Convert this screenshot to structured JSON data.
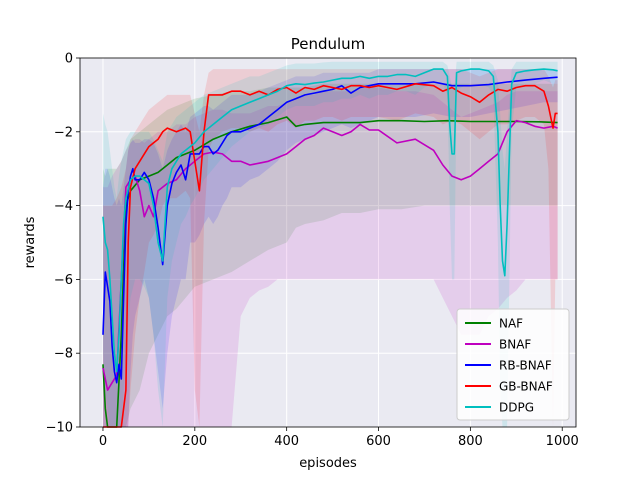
{
  "chart_data": {
    "type": "line",
    "title": "Pendulum",
    "xlabel": "episodes",
    "ylabel": "rewards",
    "xlim": [
      -50,
      1030
    ],
    "ylim": [
      -10,
      0
    ],
    "xticks": [
      0,
      200,
      400,
      600,
      800,
      1000
    ],
    "xtick_labels": [
      "0",
      "200",
      "400",
      "600",
      "800",
      "1000"
    ],
    "yticks": [
      -10,
      -8,
      -6,
      -4,
      -2,
      0
    ],
    "ytick_labels": [
      "−10",
      "−8",
      "−6",
      "−4",
      "−2",
      "0"
    ],
    "grid": true,
    "legend_position": "lower-right",
    "series": [
      {
        "name": "NAF",
        "color": "#008000",
        "x": [
          0,
          5,
          10,
          20,
          30,
          40,
          50,
          60,
          80,
          100,
          120,
          140,
          160,
          180,
          200,
          240,
          280,
          320,
          360,
          400,
          420,
          440,
          480,
          520,
          560,
          600,
          650,
          700,
          750,
          800,
          850,
          900,
          950,
          990
        ],
        "y": [
          -8.3,
          -9.5,
          -10.0,
          -10.0,
          -10.0,
          -7.5,
          -4.0,
          -3.6,
          -3.3,
          -3.2,
          -3.1,
          -2.9,
          -2.7,
          -2.6,
          -2.5,
          -2.2,
          -2.0,
          -1.85,
          -1.75,
          -1.6,
          -1.85,
          -1.8,
          -1.75,
          -1.75,
          -1.75,
          -1.7,
          -1.7,
          -1.72,
          -1.7,
          -1.72,
          -1.72,
          -1.72,
          -1.73,
          -1.75
        ],
        "band_upper": [
          -3.0,
          -3.2,
          -3.0,
          -3.0,
          -3.0,
          -2.8,
          -2.5,
          -2.2,
          -2.0,
          -1.8,
          -1.6,
          -1.4,
          -1.3,
          -1.2,
          -1.1,
          -1.0,
          -0.9,
          -0.9,
          -0.8,
          -0.8,
          -0.8,
          -0.8,
          -0.7,
          -0.7,
          -0.7,
          -0.7,
          -0.7,
          -0.7,
          -0.7,
          -0.7,
          -0.7,
          -0.7,
          -0.7,
          -0.7
        ],
        "band_lower": [
          -10,
          -10,
          -10,
          -10,
          -10,
          -10,
          -10,
          -9.5,
          -9,
          -8.0,
          -7.5,
          -7.0,
          -6.8,
          -6.5,
          -6.2,
          -6.0,
          -5.8,
          -5.5,
          -5.2,
          -5.0,
          -4.6,
          -4.5,
          -4.4,
          -4.2,
          -4.2,
          -4.1,
          -4.1,
          -4.0,
          -4.0,
          -4.0,
          -4.0,
          -4.0,
          -4.0,
          -4.0
        ]
      },
      {
        "name": "BNAF",
        "color": "#bf00bf",
        "x": [
          0,
          10,
          20,
          30,
          40,
          50,
          60,
          70,
          80,
          90,
          100,
          110,
          120,
          140,
          160,
          180,
          200,
          220,
          240,
          260,
          280,
          300,
          320,
          340,
          360,
          380,
          400,
          420,
          440,
          460,
          480,
          500,
          520,
          540,
          560,
          580,
          600,
          640,
          680,
          720,
          740,
          760,
          780,
          800,
          820,
          840,
          860,
          880,
          900,
          920,
          940,
          960,
          980,
          990
        ],
        "y": [
          -8.4,
          -9.0,
          -8.8,
          -8.6,
          -6.0,
          -3.5,
          -3.3,
          -3.2,
          -3.6,
          -4.3,
          -4.0,
          -4.3,
          -3.6,
          -3.4,
          -3.3,
          -3.0,
          -2.8,
          -2.6,
          -2.55,
          -2.6,
          -2.8,
          -2.8,
          -2.9,
          -2.85,
          -2.8,
          -2.7,
          -2.6,
          -2.4,
          -2.2,
          -2.1,
          -1.9,
          -2.0,
          -2.1,
          -2.0,
          -1.8,
          -1.95,
          -1.95,
          -2.3,
          -2.2,
          -2.5,
          -2.9,
          -3.2,
          -3.3,
          -3.2,
          -3.0,
          -2.8,
          -2.6,
          -2.0,
          -1.7,
          -1.75,
          -1.85,
          -1.9,
          -1.85,
          -1.9
        ],
        "band_upper": [
          -3.5,
          -3.5,
          -3.2,
          -3.0,
          -2.8,
          -2.5,
          -2.3,
          -2.2,
          -2.2,
          -2.3,
          -2.2,
          -2.1,
          -2.0,
          -2.0,
          -1.8,
          -1.8,
          -1.6,
          -1.5,
          -1.4,
          -1.4,
          -1.5,
          -1.5,
          -1.5,
          -1.4,
          -1.3,
          -1.3,
          -1.2,
          -1.1,
          -1.0,
          -1.0,
          -0.9,
          -0.9,
          -0.9,
          -0.9,
          -0.8,
          -0.8,
          -0.8,
          -0.9,
          -0.9,
          -1.0,
          -1.2,
          -1.4,
          -1.6,
          -1.5,
          -1.4,
          -1.3,
          -1.2,
          -1.0,
          -0.9,
          -0.9,
          -0.9,
          -0.9,
          -0.9,
          -0.9
        ],
        "band_lower": [
          -10,
          -10,
          -10,
          -10,
          -10,
          -10,
          -10,
          -10,
          -10,
          -10,
          -10,
          -10,
          -10,
          -10,
          -10,
          -10,
          -10,
          -10,
          -10,
          -10,
          -10,
          -7.0,
          -6.5,
          -6.3,
          -6.2,
          -6.0,
          -6.0,
          -6.0,
          -6.0,
          -6.0,
          -6.0,
          -6.0,
          -6.0,
          -6.0,
          -6.0,
          -6.0,
          -6.0,
          -6.0,
          -6.0,
          -6.0,
          -6.5,
          -7.0,
          -7.5,
          -7.5,
          -7.5,
          -7.0,
          -6.8,
          -6.5,
          -6.3,
          -6.0,
          -6.0,
          -6.0,
          -6.0,
          -6.0
        ]
      },
      {
        "name": "RB-BNAF",
        "color": "#0000ff",
        "x": [
          0,
          5,
          10,
          15,
          20,
          25,
          30,
          35,
          40,
          45,
          50,
          55,
          60,
          65,
          70,
          80,
          90,
          100,
          110,
          120,
          130,
          140,
          150,
          160,
          170,
          180,
          190,
          200,
          210,
          220,
          230,
          240,
          250,
          260,
          270,
          280,
          300,
          320,
          340,
          360,
          380,
          400,
          420,
          440,
          460,
          480,
          500,
          520,
          540,
          560,
          580,
          600,
          640,
          680,
          720,
          760,
          800,
          840,
          880,
          920,
          960,
          990
        ],
        "y": [
          -7.5,
          -5.8,
          -6.2,
          -6.6,
          -7.8,
          -8.5,
          -8.8,
          -8.3,
          -8.7,
          -6.5,
          -4.5,
          -3.6,
          -3.2,
          -3.0,
          -3.3,
          -3.3,
          -3.1,
          -3.3,
          -3.8,
          -4.6,
          -5.6,
          -4.0,
          -3.4,
          -3.1,
          -2.9,
          -3.3,
          -2.6,
          -2.6,
          -2.6,
          -2.4,
          -2.4,
          -2.6,
          -2.5,
          -2.3,
          -2.1,
          -2.0,
          -2.0,
          -1.9,
          -1.8,
          -1.6,
          -1.4,
          -1.2,
          -1.1,
          -1.0,
          -0.95,
          -0.9,
          -0.85,
          -0.75,
          -0.95,
          -0.8,
          -0.75,
          -0.7,
          -0.7,
          -0.7,
          -0.65,
          -0.75,
          -0.75,
          -0.72,
          -0.65,
          -0.6,
          -0.55,
          -0.52
        ],
        "band_upper": [
          -3.5,
          -3.0,
          -3.0,
          -3.2,
          -3.5,
          -3.8,
          -4.0,
          -3.8,
          -4.0,
          -3.5,
          -3.0,
          -2.5,
          -2.3,
          -2.2,
          -2.3,
          -2.3,
          -2.2,
          -2.2,
          -2.3,
          -2.6,
          -3.0,
          -2.5,
          -2.2,
          -2.0,
          -1.8,
          -2.0,
          -1.6,
          -1.5,
          -1.4,
          -1.3,
          -1.3,
          -1.4,
          -1.3,
          -1.2,
          -1.1,
          -1.0,
          -1.0,
          -1.0,
          -0.9,
          -0.8,
          -0.7,
          -0.6,
          -0.5,
          -0.5,
          -0.5,
          -0.4,
          -0.4,
          -0.4,
          -0.4,
          -0.4,
          -0.4,
          -0.3,
          -0.3,
          -0.3,
          -0.3,
          -0.3,
          -0.3,
          -0.3,
          -0.3,
          -0.3,
          -0.3,
          -0.3
        ],
        "band_lower": [
          -10,
          -10,
          -10,
          -10,
          -10,
          -10,
          -10,
          -10,
          -10,
          -10,
          -10,
          -10,
          -8.5,
          -7.5,
          -7.0,
          -6.5,
          -6.0,
          -6.5,
          -7.5,
          -8.5,
          -9.5,
          -8.0,
          -7.0,
          -6.5,
          -6.0,
          -6.0,
          -5.0,
          -5.0,
          -4.8,
          -4.5,
          -4.3,
          -4.5,
          -4.3,
          -4.0,
          -3.8,
          -3.5,
          -3.5,
          -3.3,
          -3.2,
          -3.0,
          -2.8,
          -2.5,
          -2.3,
          -2.2,
          -2.1,
          -2.0,
          -1.9,
          -1.8,
          -1.9,
          -1.8,
          -1.7,
          -1.6,
          -1.6,
          -1.6,
          -1.5,
          -1.6,
          -1.6,
          -1.5,
          -1.4,
          -1.3,
          -1.2,
          -1.2
        ]
      },
      {
        "name": "GB-BNAF",
        "color": "#ff0000",
        "x": [
          0,
          10,
          20,
          30,
          40,
          50,
          55,
          60,
          70,
          80,
          90,
          100,
          110,
          120,
          130,
          140,
          160,
          180,
          190,
          200,
          210,
          220,
          230,
          240,
          260,
          280,
          300,
          320,
          340,
          360,
          380,
          400,
          420,
          440,
          460,
          480,
          500,
          520,
          540,
          560,
          580,
          600,
          640,
          680,
          720,
          740,
          760,
          780,
          800,
          820,
          840,
          860,
          880,
          900,
          920,
          940,
          960,
          970,
          980,
          985,
          990
        ],
        "y": [
          -10,
          -10,
          -10,
          -10,
          -10,
          -9.0,
          -5.0,
          -3.5,
          -3.0,
          -2.8,
          -2.6,
          -2.4,
          -2.3,
          -2.2,
          -2.0,
          -1.9,
          -2.0,
          -1.9,
          -2.0,
          -2.8,
          -3.6,
          -2.0,
          -1.0,
          -1.0,
          -1.0,
          -0.9,
          -0.9,
          -1.0,
          -0.9,
          -1.0,
          -0.85,
          -0.8,
          -0.95,
          -0.8,
          -0.85,
          -0.75,
          -0.8,
          -0.85,
          -0.75,
          -0.75,
          -0.8,
          -0.75,
          -0.85,
          -0.7,
          -0.75,
          -0.9,
          -0.8,
          -0.95,
          -1.05,
          -1.2,
          -1.0,
          -0.85,
          -0.9,
          -0.8,
          -0.75,
          -0.75,
          -0.9,
          -1.3,
          -1.9,
          -1.5,
          -1.5
        ],
        "band_upper": [
          -4.0,
          -4.0,
          -4.0,
          -3.8,
          -3.5,
          -3.0,
          -2.5,
          -2.2,
          -2.0,
          -1.8,
          -1.6,
          -1.4,
          -1.3,
          -1.2,
          -1.1,
          -1.0,
          -1.0,
          -1.0,
          -1.0,
          -1.5,
          -2.0,
          -1.0,
          -0.4,
          -0.3,
          -0.3,
          -0.3,
          -0.3,
          -0.3,
          -0.3,
          -0.3,
          -0.3,
          -0.3,
          -0.3,
          -0.3,
          -0.3,
          -0.3,
          -0.3,
          -0.3,
          -0.3,
          -0.3,
          -0.3,
          -0.3,
          -0.3,
          -0.3,
          -0.3,
          -0.3,
          -0.3,
          -0.3,
          -0.4,
          -0.5,
          -0.4,
          -0.3,
          -0.3,
          -0.3,
          -0.3,
          -0.3,
          -0.3,
          -0.5,
          -0.8,
          -0.6,
          -0.6
        ],
        "band_lower": [
          -10,
          -10,
          -10,
          -10,
          -10,
          -10,
          -10,
          -9.0,
          -7.5,
          -6.5,
          -5.8,
          -5.0,
          -4.8,
          -4.5,
          -4.0,
          -3.8,
          -3.8,
          -3.6,
          -3.8,
          -9.0,
          -10,
          -4.5,
          -2.5,
          -2.2,
          -2.0,
          -1.9,
          -1.9,
          -2.0,
          -1.9,
          -2.0,
          -1.8,
          -1.7,
          -1.9,
          -1.7,
          -1.7,
          -1.6,
          -1.6,
          -1.7,
          -1.6,
          -1.6,
          -1.6,
          -1.6,
          -1.7,
          -1.5,
          -1.6,
          -1.8,
          -1.7,
          -1.8,
          -2.0,
          -2.2,
          -2.0,
          -1.8,
          -1.8,
          -1.7,
          -1.6,
          -1.6,
          -1.8,
          -3.0,
          -10,
          -6.0,
          -6.0
        ]
      },
      {
        "name": "DDPG",
        "color": "#00bfbf",
        "x": [
          0,
          5,
          10,
          15,
          20,
          25,
          30,
          35,
          40,
          45,
          50,
          60,
          70,
          80,
          90,
          100,
          110,
          120,
          130,
          140,
          150,
          160,
          170,
          180,
          190,
          200,
          220,
          240,
          260,
          280,
          300,
          320,
          340,
          360,
          380,
          400,
          420,
          440,
          460,
          480,
          500,
          520,
          540,
          560,
          580,
          600,
          620,
          640,
          660,
          680,
          700,
          720,
          740,
          750,
          755,
          760,
          765,
          770,
          780,
          800,
          820,
          840,
          850,
          860,
          865,
          870,
          875,
          880,
          890,
          900,
          920,
          940,
          960,
          980,
          990
        ],
        "y": [
          -4.3,
          -5.0,
          -5.2,
          -6.0,
          -7.0,
          -8.0,
          -8.5,
          -7.5,
          -6.0,
          -4.5,
          -3.8,
          -3.3,
          -3.2,
          -3.2,
          -3.3,
          -3.4,
          -4.0,
          -5.0,
          -5.5,
          -3.5,
          -3.0,
          -2.8,
          -2.6,
          -2.5,
          -2.4,
          -2.3,
          -2.0,
          -1.8,
          -1.6,
          -1.4,
          -1.3,
          -1.2,
          -1.1,
          -1.0,
          -0.9,
          -0.75,
          -0.7,
          -0.72,
          -0.68,
          -0.65,
          -0.6,
          -0.55,
          -0.55,
          -0.5,
          -0.55,
          -0.5,
          -0.5,
          -0.45,
          -0.45,
          -0.5,
          -0.4,
          -0.3,
          -0.3,
          -0.5,
          -1.8,
          -2.6,
          -2.6,
          -0.4,
          -0.35,
          -0.3,
          -0.3,
          -0.35,
          -0.5,
          -2.0,
          -4.0,
          -5.5,
          -5.9,
          -4.5,
          -0.7,
          -0.4,
          -0.35,
          -0.32,
          -0.3,
          -0.32,
          -0.35
        ],
        "band_upper": [
          -1.5,
          -1.8,
          -2.0,
          -2.5,
          -3.0,
          -3.5,
          -3.8,
          -3.2,
          -2.8,
          -2.5,
          -2.2,
          -2.0,
          -2.0,
          -2.0,
          -2.0,
          -2.0,
          -2.2,
          -2.5,
          -2.8,
          -2.0,
          -1.8,
          -1.6,
          -1.5,
          -1.4,
          -1.3,
          -1.2,
          -1.0,
          -0.9,
          -0.8,
          -0.7,
          -0.6,
          -0.5,
          -0.5,
          -0.4,
          -0.3,
          -0.2,
          -0.15,
          -0.15,
          -0.15,
          -0.12,
          -0.1,
          -0.1,
          -0.1,
          -0.1,
          -0.1,
          -0.1,
          -0.1,
          -0.1,
          -0.1,
          -0.1,
          -0.1,
          -0.1,
          -0.1,
          -0.2,
          -0.5,
          -0.8,
          -0.8,
          -0.1,
          -0.1,
          -0.1,
          -0.1,
          -0.1,
          -0.2,
          -0.6,
          -1.5,
          -2.5,
          -3.0,
          -2.0,
          -0.3,
          -0.1,
          -0.1,
          -0.1,
          -0.1,
          -0.1,
          -0.1
        ],
        "band_lower": [
          -8.0,
          -9.0,
          -9.5,
          -10,
          -10,
          -10,
          -10,
          -10,
          -10,
          -9.0,
          -8.0,
          -6.5,
          -6.0,
          -6.0,
          -6.2,
          -6.5,
          -7.5,
          -9.0,
          -10,
          -6.5,
          -5.5,
          -5.0,
          -4.5,
          -4.3,
          -4.0,
          -3.8,
          -3.3,
          -3.0,
          -2.7,
          -2.4,
          -2.2,
          -2.0,
          -1.9,
          -1.8,
          -1.6,
          -1.4,
          -1.3,
          -1.3,
          -1.3,
          -1.2,
          -1.2,
          -1.1,
          -1.1,
          -1.0,
          -1.1,
          -1.0,
          -1.0,
          -0.9,
          -0.9,
          -1.0,
          -0.8,
          -0.7,
          -0.7,
          -1.0,
          -4.0,
          -6.0,
          -6.0,
          -0.9,
          -0.8,
          -0.7,
          -0.7,
          -0.8,
          -1.0,
          -5.0,
          -9.0,
          -10,
          -10,
          -10,
          -2.0,
          -0.8,
          -0.7,
          -0.7,
          -0.6,
          -0.7,
          -0.7
        ]
      }
    ]
  }
}
